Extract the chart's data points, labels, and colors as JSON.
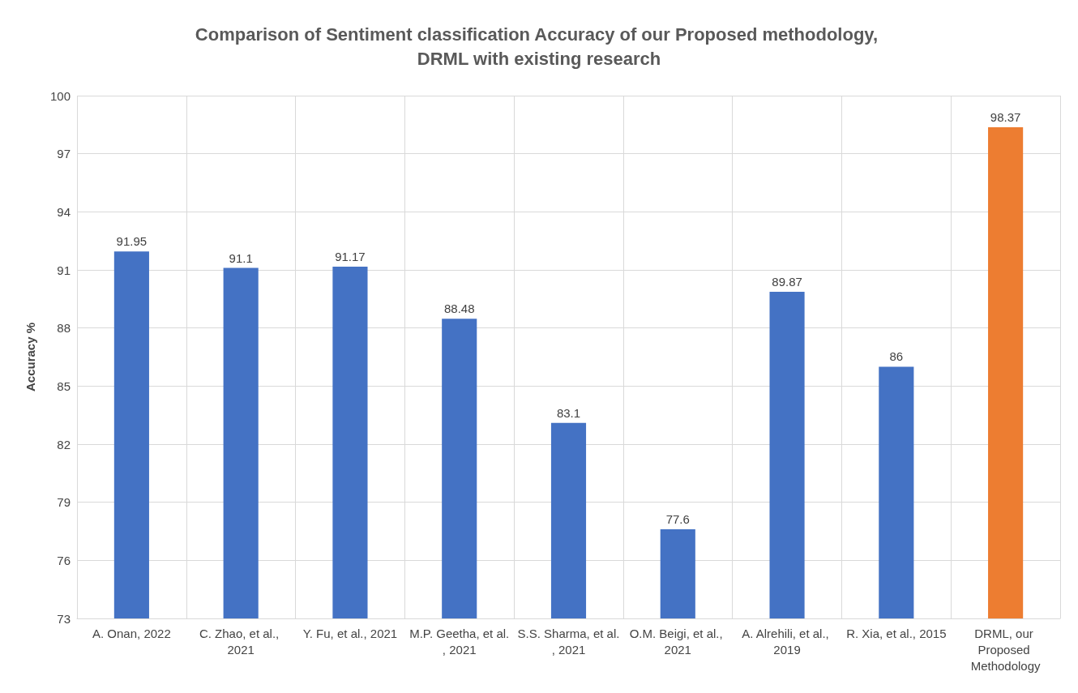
{
  "chart_data": {
    "type": "bar",
    "title": "Comparison of Sentiment classification Accuracy of our Proposed methodology, DRML with existing research",
    "ylabel": "Accuracy %",
    "categories": [
      "A. Onan, 2022",
      "C. Zhao, et al., 2021",
      "Y. Fu, et al., 2021",
      "M.P. Geetha, et al., 2021",
      "S.S. Sharma, et al., 2021",
      "O.M. Beigi, et al., 2021",
      "A. Alrehili, et al., 2019",
      "R. Xia, et al., 2015",
      "DRML, our Proposed Methodology"
    ],
    "values": [
      91.95,
      91.1,
      91.17,
      88.48,
      83.1,
      77.6,
      89.87,
      86,
      98.37
    ],
    "colors": [
      "#4472c4",
      "#4472c4",
      "#4472c4",
      "#4472c4",
      "#4472c4",
      "#4472c4",
      "#4472c4",
      "#4472c4",
      "#ed7d31"
    ],
    "ylim": [
      73,
      100
    ],
    "yticks": [
      73,
      76,
      79,
      82,
      85,
      88,
      91,
      94,
      97,
      100
    ],
    "grid": true,
    "data_labels": true
  }
}
